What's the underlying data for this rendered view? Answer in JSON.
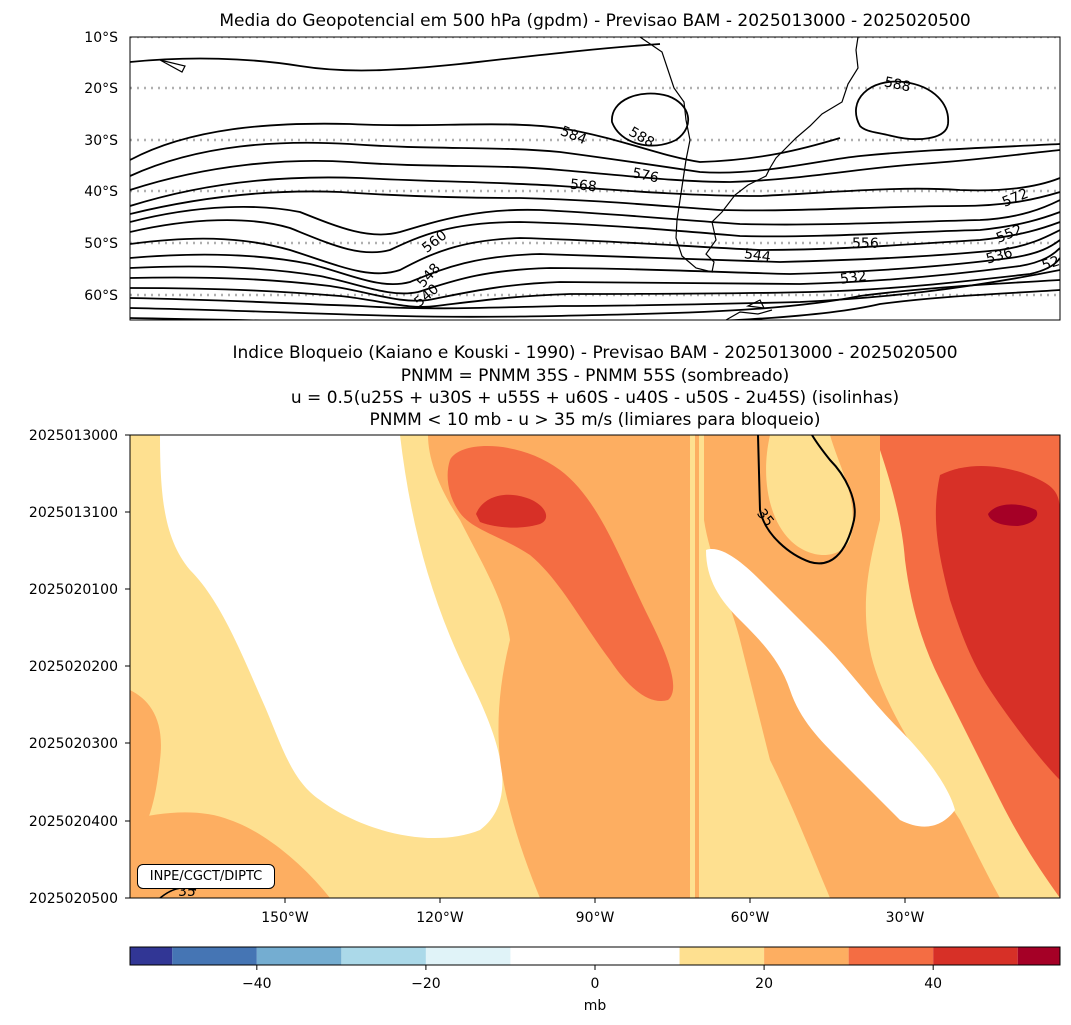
{
  "chart_data": [
    {
      "type": "contour",
      "title": "Media do Geopotencial em 500 hPa (gpdm) - Previsao BAM - 2025013000 - 2025020500",
      "lat_ticks": [
        "10°S",
        "20°S",
        "30°S",
        "40°S",
        "50°S",
        "60°S"
      ],
      "ylim": [
        -65,
        -10
      ],
      "gridlines": "dotted, every 10°",
      "contour_labels": [
        "588",
        "588",
        "584",
        "576",
        "568",
        "560",
        "548",
        "540",
        "572",
        "552",
        "556",
        "544",
        "536",
        "532",
        "52"
      ],
      "units": "gpdm"
    },
    {
      "type": "heatmap",
      "title_lines": [
        "Indice Bloqueio (Kaiano e Kouski - 1990) - Previsao BAM - 2025013000 - 2025020500",
        "PNMM = PNMM 35S - PNMM 55S (sombreado)",
        "u = 0.5(u25S + u30S + u55S + u60S - u40S - u50S - 2u45S) (isolinhas)",
        "PNMM < 10 mb - u > 35 m/s (limiares para bloqueio)"
      ],
      "y_ticks": [
        "2025013000",
        "2025013100",
        "2025020100",
        "2025020200",
        "2025020300",
        "2025020400",
        "2025020500"
      ],
      "x_ticks": [
        "150°W",
        "120°W",
        "90°W",
        "60°W",
        "30°W"
      ],
      "x_tick_lon": [
        -150,
        -120,
        -90,
        -60,
        -30
      ],
      "xlim": [
        -180,
        0
      ],
      "contour_labels": [
        "35",
        "35"
      ],
      "credit": "INPE/CGCT/DIPTC"
    },
    {
      "type": "colorbar",
      "levels": [
        -55,
        -50,
        -40,
        -30,
        -20,
        -10,
        10,
        20,
        30,
        40,
        50,
        55
      ],
      "colors": [
        "#313695",
        "#4575b4",
        "#74add1",
        "#abd9e9",
        "#e0f3f8",
        "#ffffff",
        "#fee090",
        "#fdae61",
        "#f46d43",
        "#d73027",
        "#a50026"
      ],
      "tick_labels": [
        "−40",
        "−20",
        "0",
        "20",
        "40"
      ],
      "tick_values": [
        -40,
        -20,
        0,
        20,
        40
      ],
      "label": "mb"
    }
  ]
}
